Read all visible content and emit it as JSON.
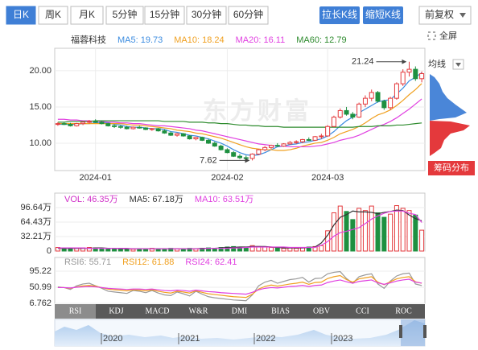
{
  "toolbar": {
    "periods": [
      "日K",
      "周K",
      "月K",
      "5分钟",
      "15分钟",
      "30分钟",
      "60分钟"
    ],
    "buttons": [
      "拉长K线",
      "缩短K线"
    ],
    "adjust": "前复权",
    "fullscreen": "全屏"
  },
  "watermark": "东方财富",
  "chip_panel": {
    "label": "均线",
    "button": "筹码分布"
  },
  "indicator_tabs": [
    "RSI",
    "KDJ",
    "MACD",
    "W&R",
    "DMI",
    "BIAS",
    "OBV",
    "CCI",
    "ROC"
  ],
  "overview": {
    "labels": [
      "2020",
      "2021",
      "2022",
      "2023"
    ]
  },
  "chart_data": [
    {
      "type": "candlestick",
      "title": "福蓉科技",
      "categories": [
        null,
        null,
        null,
        null,
        null,
        null,
        "2024-01",
        null,
        null,
        null,
        null,
        null,
        null,
        null,
        null,
        null,
        null,
        null,
        null,
        null,
        null,
        null,
        null,
        null,
        null,
        null,
        null,
        "2024-02",
        null,
        null,
        null,
        null,
        null,
        null,
        null,
        null,
        null,
        null,
        null,
        null,
        null,
        null,
        null,
        "2024-03",
        null,
        null,
        null,
        null,
        null,
        null,
        null,
        null,
        null,
        null,
        null,
        null,
        null,
        null,
        null
      ],
      "open": [
        12.6,
        12.7,
        12.6,
        12.4,
        12.7,
        12.9,
        13.0,
        12.9,
        12.7,
        12.4,
        12.3,
        12.2,
        12.0,
        12.2,
        12.1,
        11.9,
        12.0,
        11.7,
        11.4,
        11.1,
        11.3,
        11.0,
        10.6,
        10.8,
        10.4,
        10.0,
        9.6,
        9.1,
        8.7,
        8.2,
        8.0,
        7.9,
        8.5,
        9.1,
        9.4,
        9.7,
        9.6,
        9.9,
        10.1,
        10.2,
        10.5,
        10.4,
        10.9,
        11.0,
        12.3,
        13.6,
        14.5,
        14.0,
        13.6,
        15.4,
        16.2,
        17.0,
        15.8,
        14.9,
        16.2,
        18.2,
        19.8,
        20.2,
        18.9
      ],
      "high": [
        12.9,
        12.9,
        12.8,
        12.8,
        13.0,
        13.2,
        13.3,
        13.1,
        12.8,
        12.6,
        12.5,
        12.4,
        12.3,
        12.4,
        12.2,
        12.1,
        12.1,
        11.9,
        11.6,
        11.4,
        11.4,
        11.1,
        10.9,
        10.9,
        10.6,
        10.2,
        9.8,
        9.3,
        8.9,
        8.5,
        8.3,
        8.6,
        9.2,
        9.6,
        9.8,
        10.0,
        10.0,
        10.3,
        10.4,
        10.6,
        10.8,
        11.0,
        11.3,
        12.5,
        13.8,
        14.8,
        15.0,
        14.3,
        15.6,
        16.6,
        17.4,
        17.2,
        16.0,
        16.4,
        18.4,
        20.2,
        21.24,
        20.6,
        19.9
      ],
      "low": [
        12.4,
        12.5,
        12.3,
        12.3,
        12.5,
        12.7,
        12.8,
        12.6,
        12.3,
        12.1,
        12.0,
        11.9,
        11.9,
        12.0,
        11.8,
        11.7,
        11.6,
        11.3,
        11.0,
        10.9,
        10.9,
        10.5,
        10.4,
        10.3,
        9.9,
        9.5,
        9.0,
        8.6,
        8.1,
        7.8,
        7.8,
        7.62,
        8.4,
        8.9,
        9.2,
        9.5,
        9.5,
        9.8,
        9.9,
        10.0,
        10.3,
        10.3,
        10.6,
        10.9,
        12.2,
        13.4,
        13.8,
        13.3,
        13.5,
        15.0,
        15.8,
        15.6,
        14.6,
        14.6,
        16.0,
        17.9,
        19.2,
        18.6,
        18.4
      ],
      "close": [
        12.7,
        12.6,
        12.4,
        12.7,
        12.9,
        13.0,
        12.9,
        12.7,
        12.4,
        12.3,
        12.2,
        12.0,
        12.2,
        12.1,
        11.9,
        12.0,
        11.7,
        11.4,
        11.1,
        11.3,
        11.0,
        10.6,
        10.8,
        10.4,
        10.0,
        9.6,
        9.1,
        8.7,
        8.2,
        8.0,
        7.9,
        8.5,
        9.1,
        9.4,
        9.7,
        9.6,
        9.9,
        10.1,
        10.2,
        10.5,
        10.4,
        10.9,
        11.0,
        12.3,
        13.6,
        14.5,
        14.0,
        13.6,
        15.4,
        16.2,
        17.0,
        15.8,
        14.9,
        16.2,
        18.2,
        19.8,
        20.2,
        18.9,
        19.6
      ],
      "up_color": "#e4393c",
      "down_color": "#1e9040",
      "series": [
        {
          "name": "MA5: 19.73",
          "color": "#3c8ce0",
          "values": [
            12.6,
            12.6,
            12.6,
            12.6,
            12.7,
            12.7,
            12.8,
            12.8,
            12.8,
            12.6,
            12.5,
            12.3,
            12.2,
            12.2,
            12.1,
            12.0,
            12.0,
            11.9,
            11.6,
            11.5,
            11.3,
            11.1,
            11.0,
            10.8,
            10.6,
            10.3,
            10.0,
            9.6,
            9.1,
            8.7,
            8.4,
            8.3,
            8.4,
            8.7,
            9.1,
            9.5,
            9.6,
            9.8,
            9.9,
            10.1,
            10.2,
            10.4,
            10.6,
            11.0,
            11.6,
            12.4,
            13.1,
            13.6,
            14.2,
            14.7,
            15.2,
            15.7,
            15.9,
            16.0,
            16.8,
            17.6,
            18.6,
            19.1,
            19.73
          ]
        },
        {
          "name": "MA10: 18.24",
          "color": "#f0a020",
          "values": [
            12.7,
            12.7,
            12.7,
            12.7,
            12.7,
            12.7,
            12.7,
            12.7,
            12.7,
            12.7,
            12.7,
            12.6,
            12.5,
            12.5,
            12.4,
            12.3,
            12.2,
            12.1,
            12.0,
            11.8,
            11.7,
            11.6,
            11.4,
            11.3,
            11.1,
            10.9,
            10.7,
            10.4,
            10.1,
            9.8,
            9.5,
            9.3,
            9.2,
            9.1,
            9.1,
            9.0,
            9.0,
            9.1,
            9.3,
            9.6,
            9.8,
            10.0,
            10.1,
            10.4,
            10.8,
            11.3,
            11.6,
            11.9,
            12.3,
            12.8,
            13.4,
            13.9,
            14.2,
            14.6,
            15.2,
            15.9,
            16.7,
            17.4,
            18.24
          ]
        },
        {
          "name": "MA20: 16.11",
          "color": "#e040e0",
          "values": [
            13.3,
            13.3,
            13.2,
            13.2,
            13.1,
            13.1,
            13.0,
            13.0,
            12.9,
            12.9,
            12.8,
            12.8,
            12.7,
            12.7,
            12.6,
            12.5,
            12.4,
            12.4,
            12.3,
            12.2,
            12.1,
            12.0,
            11.8,
            11.7,
            11.5,
            11.3,
            11.1,
            10.9,
            10.7,
            10.5,
            10.3,
            10.1,
            9.9,
            9.8,
            9.7,
            9.6,
            9.6,
            9.5,
            9.5,
            9.5,
            9.5,
            9.6,
            9.7,
            9.9,
            10.1,
            10.4,
            10.6,
            10.8,
            11.1,
            11.5,
            11.9,
            12.3,
            12.6,
            13.0,
            13.5,
            14.1,
            14.7,
            15.4,
            16.11
          ]
        },
        {
          "name": "MA60: 12.79",
          "color": "#2e8b2e",
          "values": [
            12.9,
            12.9,
            13.0,
            13.0,
            13.0,
            13.0,
            13.1,
            13.1,
            13.1,
            13.1,
            13.1,
            13.1,
            13.1,
            13.1,
            13.1,
            13.1,
            13.1,
            13.0,
            13.0,
            13.0,
            13.0,
            12.9,
            12.9,
            12.9,
            12.8,
            12.8,
            12.7,
            12.7,
            12.6,
            12.5,
            12.5,
            12.4,
            12.4,
            12.3,
            12.3,
            12.3,
            12.2,
            12.2,
            12.2,
            12.2,
            12.2,
            12.2,
            12.2,
            12.2,
            12.2,
            12.2,
            12.2,
            12.2,
            12.3,
            12.3,
            12.3,
            12.4,
            12.4,
            12.4,
            12.5,
            12.5,
            12.6,
            12.7,
            12.79
          ]
        }
      ],
      "annotations": [
        {
          "value": 21.24,
          "index": 56
        },
        {
          "value": 7.62,
          "index": 31
        }
      ],
      "ylim": [
        6.22,
        23.1
      ],
      "yticks": [
        {
          "value": 10,
          "label": "10.00"
        },
        {
          "value": 15,
          "label": "15.00"
        },
        {
          "value": 20,
          "label": "20.00"
        }
      ],
      "grid": true
    },
    {
      "type": "bar",
      "up_color": "#e4393c",
      "down_color": "#1e9040",
      "series": [
        {
          "name": "VOL: 46.35万",
          "color": "#d030c8",
          "values": [
            8,
            6,
            5,
            6,
            7,
            8,
            7,
            6,
            5,
            5,
            4,
            5,
            4,
            5,
            4,
            6,
            5,
            5,
            6,
            5,
            5,
            6,
            5,
            6,
            7,
            6,
            8,
            9,
            10,
            9,
            8,
            12,
            10,
            9,
            8,
            7,
            6,
            7,
            6,
            8,
            9,
            10,
            12,
            45,
            85,
            100,
            88,
            70,
            95,
            90,
            100,
            85,
            75,
            82,
            101,
            95,
            90,
            80,
            46.35
          ]
        },
        {
          "name": "MA5: 67.18万",
          "color": "#333333",
          "type": "line",
          "values": [
            6,
            6,
            6,
            6,
            6,
            6,
            7,
            7,
            6,
            6,
            5,
            5,
            5,
            5,
            5,
            5,
            5,
            5,
            5,
            5,
            5,
            5,
            5,
            6,
            6,
            6,
            7,
            8,
            8,
            9,
            9,
            10,
            10,
            10,
            9,
            8,
            7,
            7,
            7,
            7,
            8,
            9,
            18,
            35,
            58,
            75,
            81,
            89,
            87,
            87,
            86,
            83,
            86,
            88,
            91,
            90,
            80,
            72,
            67.18
          ]
        },
        {
          "name": "MA10: 63.51万",
          "color": "#e040e0",
          "type": "line",
          "values": [
            7,
            7,
            7,
            7,
            7,
            6,
            6,
            6,
            6,
            6,
            6,
            6,
            5,
            5,
            5,
            5,
            5,
            5,
            5,
            5,
            5,
            5,
            5,
            5,
            6,
            6,
            6,
            6,
            7,
            7,
            8,
            9,
            9,
            9,
            9,
            9,
            9,
            8,
            8,
            8,
            8,
            8,
            13,
            21,
            33,
            41,
            44,
            48,
            52,
            61,
            71,
            78,
            84,
            88,
            89,
            89,
            84,
            81,
            63.51
          ]
        }
      ],
      "ylim": [
        0,
        128.8
      ],
      "yticks": [
        0,
        {
          "value": 32.21,
          "label": "32.21万"
        },
        {
          "value": 64.43,
          "label": "64.43万"
        },
        {
          "value": 96.64,
          "label": "96.64万"
        }
      ],
      "grid": true
    },
    {
      "type": "line",
      "series": [
        {
          "name": "RSI6: 55.71",
          "color": "#999999",
          "values": [
            52,
            50,
            45,
            55,
            60,
            62,
            55,
            48,
            40,
            38,
            36,
            34,
            42,
            40,
            36,
            42,
            35,
            30,
            28,
            38,
            33,
            27,
            40,
            32,
            25,
            22,
            20,
            18,
            16,
            15,
            14,
            30,
            55,
            65,
            70,
            62,
            67,
            72,
            74,
            78,
            65,
            75,
            76,
            88,
            92,
            94,
            75,
            62,
            80,
            85,
            88,
            60,
            48,
            68,
            82,
            88,
            90,
            60,
            55.71
          ]
        },
        {
          "name": "RSI12: 61.88",
          "color": "#f0a020",
          "values": [
            50,
            50,
            48,
            52,
            55,
            56,
            54,
            50,
            46,
            44,
            43,
            41,
            44,
            43,
            41,
            44,
            40,
            37,
            35,
            40,
            38,
            35,
            41,
            37,
            33,
            31,
            29,
            27,
            25,
            24,
            23,
            32,
            46,
            53,
            57,
            54,
            57,
            60,
            62,
            65,
            59,
            64,
            65,
            75,
            80,
            83,
            72,
            65,
            74,
            77,
            80,
            65,
            58,
            66,
            74,
            78,
            80,
            66,
            61.88
          ]
        },
        {
          "name": "RSI24: 62.41",
          "color": "#e040e0",
          "values": [
            50,
            50,
            49,
            51,
            52,
            53,
            52,
            50,
            48,
            47,
            46,
            45,
            46,
            46,
            45,
            46,
            44,
            42,
            41,
            43,
            42,
            40,
            43,
            41,
            39,
            38,
            36,
            35,
            34,
            33,
            32,
            37,
            44,
            48,
            50,
            49,
            51,
            53,
            54,
            56,
            53,
            56,
            57,
            64,
            68,
            71,
            66,
            62,
            67,
            69,
            71,
            63,
            59,
            63,
            68,
            71,
            73,
            65,
            62.41
          ]
        }
      ],
      "ylim": [
        6.762,
        132.8
      ],
      "yticks": [
        6.762,
        50.99,
        95.22
      ],
      "grid": true
    }
  ]
}
